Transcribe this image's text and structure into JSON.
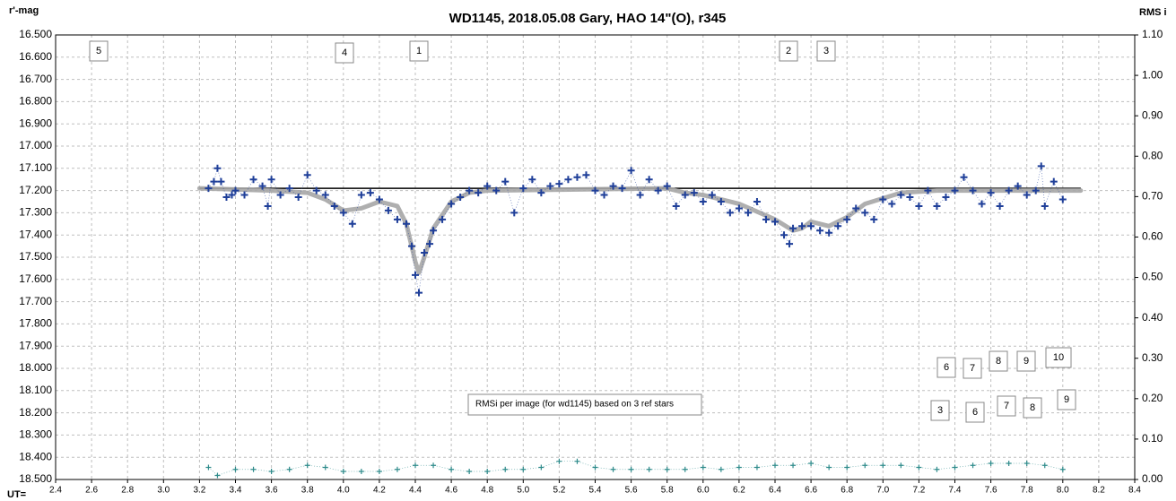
{
  "chart_data": {
    "type": "scatter",
    "title": "WD1145, 2018.05.08  Gary, HAO  14\"(O), r345",
    "y_label": "r'-mag",
    "y2_label": "RMS i",
    "x_label": "UT=",
    "xlim": [
      2.4,
      8.4
    ],
    "xticks": [
      2.4,
      2.6,
      2.8,
      {
        "value": 3,
        "label": "3.0"
      },
      3.2,
      3.4,
      3.6,
      3.8,
      {
        "value": 4,
        "label": "4.0"
      },
      4.2,
      4.4,
      4.6,
      4.8,
      {
        "value": 5,
        "label": "5.0"
      },
      5.2,
      5.4,
      5.6,
      5.8,
      {
        "value": 6,
        "label": "6.0"
      },
      6.2,
      6.4,
      6.6,
      6.8,
      {
        "value": 7,
        "label": "7.0"
      },
      7.2,
      7.4,
      7.6,
      7.8,
      {
        "value": 8,
        "label": "8.0"
      },
      8.2,
      8.4
    ],
    "ylim": [
      16.5,
      18.5
    ],
    "y_inverted": true,
    "yticks": [
      {
        "value": 16.5,
        "label": "16.500"
      },
      {
        "value": 16.6,
        "label": "16.600"
      },
      {
        "value": 16.7,
        "label": "16.700"
      },
      {
        "value": 16.8,
        "label": "16.800"
      },
      {
        "value": 16.9,
        "label": "16.900"
      },
      {
        "value": 17.0,
        "label": "17.000"
      },
      {
        "value": 17.1,
        "label": "17.100"
      },
      {
        "value": 17.2,
        "label": "17.200"
      },
      {
        "value": 17.3,
        "label": "17.300"
      },
      {
        "value": 17.4,
        "label": "17.400"
      },
      {
        "value": 17.5,
        "label": "17.500"
      },
      {
        "value": 17.6,
        "label": "17.600"
      },
      {
        "value": 17.7,
        "label": "17.700"
      },
      {
        "value": 17.8,
        "label": "17.800"
      },
      {
        "value": 17.9,
        "label": "17.900"
      },
      {
        "value": 18.0,
        "label": "18.000"
      },
      {
        "value": 18.1,
        "label": "18.100"
      },
      {
        "value": 18.2,
        "label": "18.200"
      },
      {
        "value": 18.3,
        "label": "18.300"
      },
      {
        "value": 18.4,
        "label": "18.400"
      },
      {
        "value": 18.5,
        "label": "18.500"
      }
    ],
    "y2lim": [
      0,
      1.1
    ],
    "y2ticks": [
      {
        "value": 0,
        "label": "0.00"
      },
      {
        "value": 0.1,
        "label": "0.10"
      },
      {
        "value": 0.2,
        "label": "0.20"
      },
      {
        "value": 0.3,
        "label": "0.30"
      },
      {
        "value": 0.4,
        "label": "0.40"
      },
      {
        "value": 0.5,
        "label": "0.50"
      },
      {
        "value": 0.6,
        "label": "0.60"
      },
      {
        "value": 0.7,
        "label": "0.70"
      },
      {
        "value": 0.8,
        "label": "0.80"
      },
      {
        "value": 0.9,
        "label": "0.90"
      },
      {
        "value": 1.0,
        "label": "1.00"
      },
      {
        "value": 1.1,
        "label": "1.10"
      }
    ],
    "grid": true,
    "series": [
      {
        "kind": "points",
        "color": "#1f3f99",
        "x": [
          3.25,
          3.28,
          3.3,
          3.32,
          3.35,
          3.38,
          3.4,
          3.45,
          3.5,
          3.55,
          3.58,
          3.6,
          3.65,
          3.7,
          3.75,
          3.8,
          3.85,
          3.9,
          3.95,
          4.0,
          4.05,
          4.1,
          4.15,
          4.2,
          4.25,
          4.3,
          4.35,
          4.38,
          4.4,
          4.42,
          4.45,
          4.48,
          4.5,
          4.55,
          4.6,
          4.65,
          4.7,
          4.75,
          4.8,
          4.85,
          4.9,
          4.95,
          5.0,
          5.05,
          5.1,
          5.15,
          5.2,
          5.25,
          5.3,
          5.35,
          5.4,
          5.45,
          5.5,
          5.55,
          5.6,
          5.65,
          5.7,
          5.75,
          5.8,
          5.85,
          5.9,
          5.95,
          6.0,
          6.05,
          6.1,
          6.15,
          6.2,
          6.25,
          6.3,
          6.35,
          6.4,
          6.45,
          6.48,
          6.5,
          6.55,
          6.6,
          6.65,
          6.7,
          6.75,
          6.8,
          6.85,
          6.9,
          6.95,
          7.0,
          7.05,
          7.1,
          7.15,
          7.2,
          7.25,
          7.3,
          7.35,
          7.4,
          7.45,
          7.5,
          7.55,
          7.6,
          7.65,
          7.7,
          7.75,
          7.8,
          7.85,
          7.88,
          7.9,
          7.95,
          8.0
        ],
        "values": [
          17.19,
          17.16,
          17.1,
          17.16,
          17.23,
          17.22,
          17.2,
          17.22,
          17.15,
          17.18,
          17.27,
          17.15,
          17.22,
          17.19,
          17.23,
          17.13,
          17.2,
          17.22,
          17.27,
          17.3,
          17.35,
          17.22,
          17.21,
          17.24,
          17.29,
          17.33,
          17.35,
          17.45,
          17.58,
          17.66,
          17.48,
          17.44,
          17.38,
          17.33,
          17.26,
          17.23,
          17.2,
          17.21,
          17.18,
          17.2,
          17.16,
          17.3,
          17.19,
          17.15,
          17.21,
          17.18,
          17.17,
          17.15,
          17.14,
          17.13,
          17.2,
          17.22,
          17.18,
          17.19,
          17.11,
          17.22,
          17.15,
          17.2,
          17.18,
          17.27,
          17.22,
          17.21,
          17.25,
          17.22,
          17.25,
          17.3,
          17.28,
          17.3,
          17.25,
          17.33,
          17.34,
          17.4,
          17.44,
          17.37,
          17.36,
          17.36,
          17.38,
          17.39,
          17.36,
          17.33,
          17.28,
          17.3,
          17.33,
          17.24,
          17.26,
          17.22,
          17.23,
          17.27,
          17.2,
          17.27,
          17.23,
          17.2,
          17.14,
          17.2,
          17.26,
          17.21,
          17.27,
          17.2,
          17.18,
          17.22,
          17.2,
          17.09,
          17.27,
          17.16,
          17.24
        ]
      },
      {
        "kind": "line",
        "color": "#a6a6a6",
        "x": [
          3.2,
          3.6,
          3.8,
          3.9,
          4.0,
          4.1,
          4.2,
          4.3,
          4.35,
          4.4,
          4.42,
          4.45,
          4.5,
          4.6,
          4.7,
          4.8,
          5.8,
          5.9,
          6.0,
          6.2,
          6.4,
          6.5,
          6.55,
          6.6,
          6.7,
          6.8,
          6.9,
          7.1,
          7.3,
          8.1
        ],
        "values": [
          17.19,
          17.2,
          17.21,
          17.24,
          17.29,
          17.28,
          17.25,
          17.27,
          17.35,
          17.52,
          17.57,
          17.5,
          17.37,
          17.25,
          17.21,
          17.2,
          17.19,
          17.21,
          17.22,
          17.26,
          17.33,
          17.38,
          17.37,
          17.34,
          17.36,
          17.32,
          17.26,
          17.21,
          17.2,
          17.2
        ]
      },
      {
        "kind": "baseline",
        "color": "#000000",
        "x": [
          3.2,
          8.1
        ],
        "values": [
          17.19,
          17.19
        ]
      },
      {
        "kind": "points",
        "axis": "y2",
        "color": "#2e8b8b",
        "x": [
          3.25,
          3.3,
          3.4,
          3.5,
          3.6,
          3.7,
          3.8,
          3.9,
          4.0,
          4.1,
          4.2,
          4.3,
          4.4,
          4.5,
          4.6,
          4.7,
          4.8,
          4.9,
          5.0,
          5.1,
          5.2,
          5.3,
          5.4,
          5.5,
          5.6,
          5.7,
          5.8,
          5.9,
          6.0,
          6.1,
          6.2,
          6.3,
          6.4,
          6.5,
          6.6,
          6.7,
          6.8,
          6.9,
          7.0,
          7.1,
          7.2,
          7.3,
          7.4,
          7.5,
          7.6,
          7.7,
          7.8,
          7.9,
          8.0
        ],
        "values": [
          0.03,
          0.01,
          0.025,
          0.025,
          0.02,
          0.025,
          0.035,
          0.03,
          0.02,
          0.02,
          0.02,
          0.025,
          0.035,
          0.035,
          0.025,
          0.02,
          0.02,
          0.025,
          0.025,
          0.03,
          0.045,
          0.045,
          0.03,
          0.025,
          0.025,
          0.025,
          0.025,
          0.025,
          0.03,
          0.025,
          0.03,
          0.03,
          0.035,
          0.035,
          0.04,
          0.03,
          0.03,
          0.035,
          0.035,
          0.035,
          0.03,
          0.025,
          0.03,
          0.035,
          0.04,
          0.04,
          0.04,
          0.035,
          0.025
        ]
      }
    ],
    "annotations": [
      "5",
      "4",
      "1",
      "2",
      "3",
      "6",
      "7",
      "8",
      "9",
      "10",
      "3",
      "6",
      "7",
      "8",
      "9",
      "RMSi per image (for wd1145) based on 3 ref stars"
    ]
  }
}
